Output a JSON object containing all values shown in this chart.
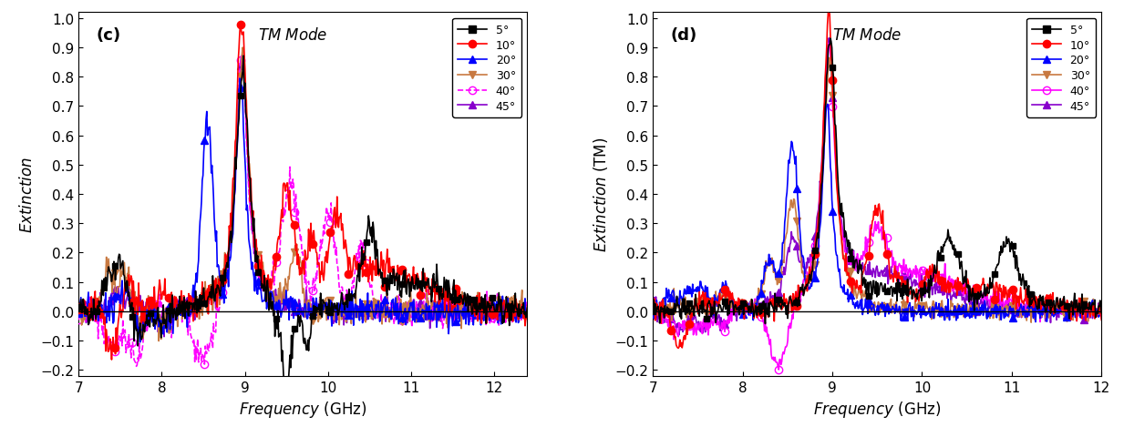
{
  "panel_c": {
    "label": "(c)",
    "ylabel": "Extinction",
    "xlabel": "Frequency (GHz)",
    "xlim": [
      7,
      12.4
    ],
    "ylim": [
      -0.22,
      1.02
    ],
    "yticks": [
      -0.2,
      -0.1,
      0.0,
      0.1,
      0.2,
      0.3,
      0.4,
      0.5,
      0.6,
      0.7,
      0.8,
      0.9,
      1.0
    ],
    "xticks": [
      7,
      8,
      9,
      10,
      11,
      12
    ]
  },
  "panel_d": {
    "label": "(d)",
    "ylabel": "Extinction (TM)",
    "xlabel": "Frequency (GHz)",
    "xlim": [
      7,
      12.0
    ],
    "ylim": [
      -0.22,
      1.02
    ],
    "yticks": [
      -0.2,
      -0.1,
      0.0,
      0.1,
      0.2,
      0.3,
      0.4,
      0.5,
      0.6,
      0.7,
      0.8,
      0.9,
      1.0
    ],
    "xticks": [
      7,
      8,
      9,
      10,
      11,
      12
    ]
  },
  "series_colors": [
    "#000000",
    "#ff0000",
    "#0000ff",
    "#c87941",
    "#ff00ff",
    "#8800cc"
  ],
  "series_labels": [
    "5°",
    "10°",
    "20°",
    "30°",
    "40°",
    "45°"
  ],
  "series_markers": [
    "s",
    "o",
    "^",
    "v",
    "o",
    "^"
  ],
  "series_linestyles_c": [
    "-",
    "-",
    "-",
    "-",
    "--",
    "-"
  ],
  "series_linestyles_d": [
    "-",
    "-",
    "-",
    "-",
    "-",
    "-"
  ],
  "series_markerfill_c": [
    "full",
    "full",
    "full",
    "full",
    "none",
    "full"
  ],
  "series_markerfill_d": [
    "full",
    "full",
    "full",
    "full",
    "none",
    "full"
  ]
}
